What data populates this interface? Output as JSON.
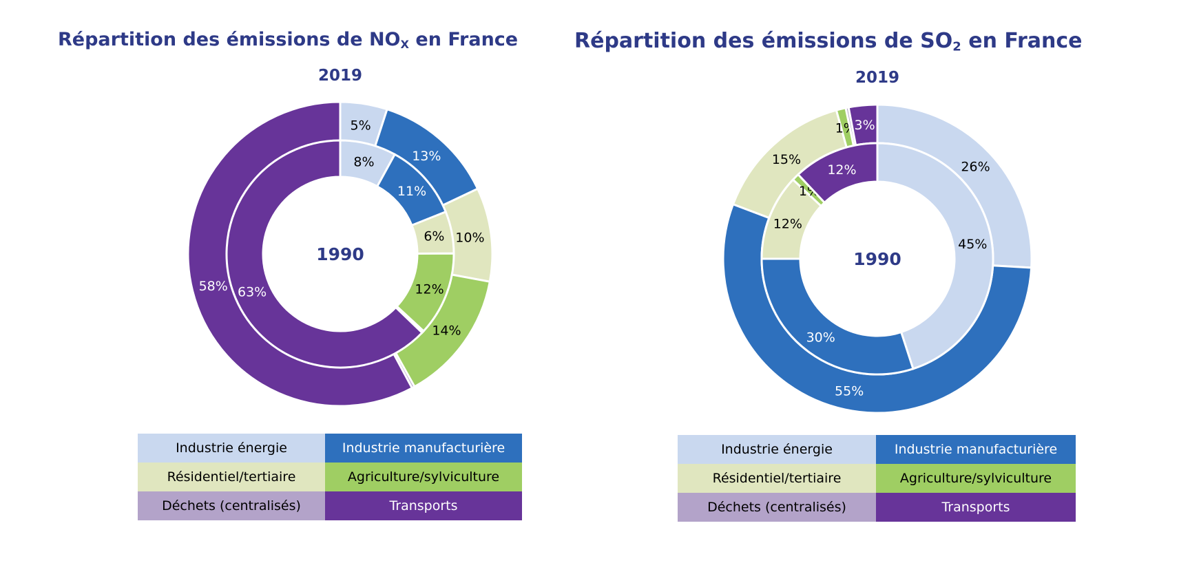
{
  "colors": {
    "industrie_energie": "#c9d8ef",
    "industrie_manufacturiere": "#2e70bd",
    "residentiel_tertiaire": "#e0e6bf",
    "agriculture_sylviculture": "#9fce63",
    "dechets": "#b3a3c9",
    "transports": "#673499",
    "title": "#2e3a87"
  },
  "legend": [
    {
      "label": "Industrie énergie",
      "color": "#c9d8ef",
      "text_color": "#000000"
    },
    {
      "label": "Industrie manufacturière",
      "color": "#2e70bd",
      "text_color": "#ffffff"
    },
    {
      "label": "Résidentiel/tertiaire",
      "color": "#e0e6bf",
      "text_color": "#000000"
    },
    {
      "label": "Agriculture/sylviculture",
      "color": "#9fce63",
      "text_color": "#000000"
    },
    {
      "label": "Déchets (centralisés)",
      "color": "#b3a3c9",
      "text_color": "#000000"
    },
    {
      "label": "Transports",
      "color": "#673499",
      "text_color": "#ffffff"
    }
  ],
  "chart_data": [
    {
      "type": "pie",
      "variant": "nested-donut",
      "title_text": "Répartition des émissions de NO",
      "title_sub": "X",
      "title_tail": " en France",
      "outer_ring_label": "2019",
      "inner_ring_label": "1990",
      "categories": [
        "Industrie énergie",
        "Industrie manufacturière",
        "Résidentiel/tertiaire",
        "Agriculture/sylviculture",
        "Déchets (centralisés)",
        "Transports"
      ],
      "series": [
        {
          "ring": "outer",
          "values": [
            5,
            13,
            10,
            14,
            0.3,
            58
          ],
          "labels": [
            "5%",
            "13%",
            "10%",
            "14%",
            "",
            "58%"
          ]
        },
        {
          "ring": "inner",
          "values": [
            8,
            11,
            6,
            12,
            0.3,
            63
          ],
          "labels": [
            "8%",
            "11%",
            "6%",
            "12%",
            "",
            "63%"
          ]
        }
      ]
    },
    {
      "type": "pie",
      "variant": "nested-donut",
      "title_text": "Répartition des émissions de SO",
      "title_sub": "2",
      "title_tail": " en France",
      "outer_ring_label": "2019",
      "inner_ring_label": "1990",
      "categories": [
        "Industrie énergie",
        "Industrie manufacturière",
        "Résidentiel/tertiaire",
        "Agriculture/sylviculture",
        "Déchets (centralisés)",
        "Transports"
      ],
      "series": [
        {
          "ring": "outer",
          "values": [
            26,
            55,
            15,
            1,
            0.3,
            3
          ],
          "labels": [
            "26%",
            "55%",
            "15%",
            "1%",
            "",
            "3%"
          ]
        },
        {
          "ring": "inner",
          "values": [
            45,
            30,
            12,
            1,
            0,
            12
          ],
          "labels": [
            "45%",
            "30%",
            "12%",
            "1%",
            "",
            "12%"
          ]
        }
      ]
    }
  ]
}
